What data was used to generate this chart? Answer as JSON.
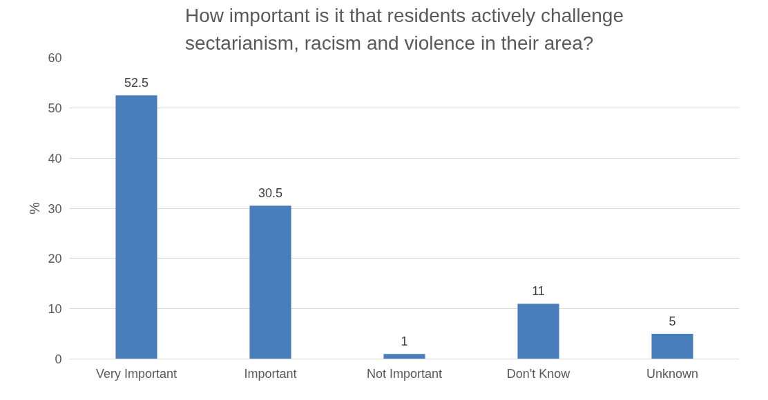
{
  "chart_data": {
    "type": "bar",
    "title": "How important is it that residents actively challenge sectarianism, racism and violence in their area?",
    "ylabel": "%",
    "categories": [
      "Very Important",
      "Important",
      "Not Important",
      "Don't Know",
      "Unknown"
    ],
    "values": [
      52.5,
      30.5,
      1,
      11,
      5
    ],
    "color": "#4a7ebb",
    "ylim": [
      0,
      60
    ],
    "yticks": [
      0,
      10,
      20,
      30,
      40,
      50,
      60
    ],
    "grid": "y",
    "data_labels": true
  }
}
